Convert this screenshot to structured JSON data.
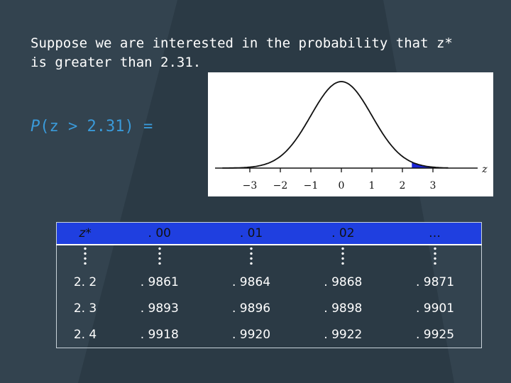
{
  "intro_text": "Suppose we are interested in the probability that z* is greater than 2.31.",
  "prob_label": {
    "p": "P",
    "rest": "(z > 2.31) ="
  },
  "figure": {
    "x_ticks": [
      "−3",
      "−2",
      "−1",
      "0",
      "1",
      "2",
      "3"
    ],
    "axis_label": "z",
    "shaded_from": 2.31,
    "shade_color": "#1a24d8"
  },
  "table": {
    "headers": [
      "z*",
      ". 00",
      ". 01",
      ". 02",
      "…"
    ],
    "rows": [
      {
        "z": "2. 2",
        "values": [
          ". 9861",
          ". 9864",
          ". 9868",
          ". 9871"
        ]
      },
      {
        "z": "2. 3",
        "values": [
          ". 9893",
          ". 9896",
          ". 9898",
          ". 9901"
        ]
      },
      {
        "z": "2. 4",
        "values": [
          ". 9918",
          ". 9920",
          ". 9922",
          ". 9925"
        ]
      }
    ]
  },
  "colors": {
    "background": "#2b3a45",
    "accent": "#3a9ad9",
    "header": "#1f3fe0"
  }
}
